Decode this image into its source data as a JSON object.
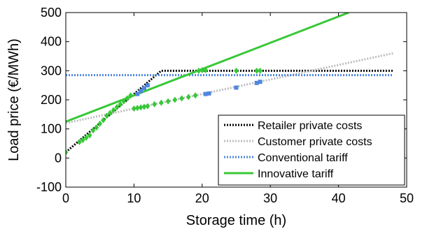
{
  "chart_data": {
    "type": "line",
    "title": "",
    "xlabel": "Storage time (h)",
    "ylabel": "Load price (€/MWh)",
    "xlim": [
      0,
      50
    ],
    "ylim": [
      -100,
      500
    ],
    "xticks": [
      0,
      10,
      20,
      30,
      40,
      50
    ],
    "yticks": [
      -100,
      0,
      100,
      200,
      300,
      400,
      500
    ],
    "xtick_labels": [
      "0",
      "10",
      "20",
      "30",
      "40",
      "50"
    ],
    "ytick_labels": [
      "-100",
      "0",
      "100",
      "200",
      "300",
      "400",
      "500"
    ],
    "grid": false,
    "legend_position": "bottom-right",
    "series": [
      {
        "name": "Retailer private costs",
        "style": "dotted",
        "color": "#000000",
        "x": [
          0,
          14,
          48
        ],
        "y": [
          20,
          300,
          300
        ]
      },
      {
        "name": "Customer private costs",
        "style": "dotted",
        "color": "#bdbdbd",
        "x": [
          0,
          48
        ],
        "y": [
          120,
          360
        ]
      },
      {
        "name": "Conventional tariff",
        "style": "dotted",
        "color": "#4f86df",
        "x": [
          0,
          48
        ],
        "y": [
          285,
          285
        ]
      },
      {
        "name": "Innovative tariff",
        "style": "solid",
        "color": "#37c837",
        "x": [
          0,
          41.5
        ],
        "y": [
          125,
          500
        ]
      }
    ],
    "markers": {
      "blue_squares": {
        "color": "#4f86df",
        "x": [
          10.5,
          11,
          11.5,
          12,
          20.5,
          21,
          25,
          28,
          28.5
        ],
        "y": [
          220,
          230,
          240,
          250,
          220,
          222,
          242,
          258,
          262
        ]
      },
      "green_diamonds": {
        "color": "#37c837",
        "x": [
          0,
          2,
          2.5,
          3,
          3.5,
          4,
          4.5,
          5,
          5.5,
          6,
          6.5,
          7,
          7.5,
          8,
          8.5,
          9,
          9.5,
          10,
          10.5,
          11,
          11.5,
          12,
          13,
          14,
          15,
          16,
          17,
          18,
          19,
          19.5,
          20,
          20.5,
          25,
          28,
          28.5
        ],
        "y": [
          20,
          55,
          62,
          70,
          78,
          95,
          105,
          118,
          130,
          145,
          155,
          165,
          175,
          185,
          195,
          205,
          215,
          170,
          172,
          174,
          176,
          178,
          185,
          190,
          195,
          200,
          205,
          210,
          215,
          300,
          302,
          302,
          300,
          300,
          300
        ]
      }
    }
  }
}
